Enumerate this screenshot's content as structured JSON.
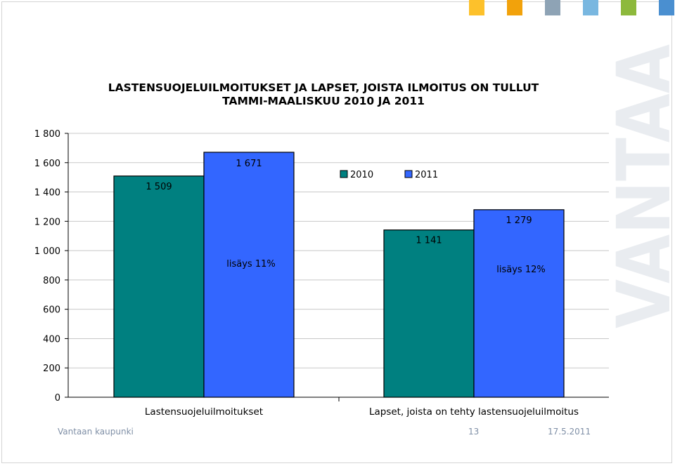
{
  "brand": {
    "watermark": "VANTAA",
    "swatch_colors": [
      "#FDC12B",
      "#F2A20B",
      "#8EA3B5",
      "#79B7E0",
      "#8DB93C",
      "#4A8FD0"
    ]
  },
  "chart_data": {
    "type": "bar",
    "title_lines": [
      "LASTENSUOJELUILMOITUKSET JA LAPSET, JOISTA ILMOITUS ON TULLUT",
      "TAMMI-MAALISKUU 2010 JA 2011"
    ],
    "categories": [
      "Lastensuojeluilmoitukset",
      "Lapset, joista on tehty lastensuojeluilmoitus"
    ],
    "series": [
      {
        "name": "2010",
        "color": "#008080",
        "values": [
          1509,
          1141
        ],
        "value_labels": [
          "1 509",
          "1 141"
        ]
      },
      {
        "name": "2011",
        "color": "#3366FF",
        "values": [
          1671,
          1279
        ],
        "value_labels": [
          "1 671",
          "1 279"
        ]
      }
    ],
    "annotations": [
      "lisäys 11%",
      "lisäys 12%"
    ],
    "ylim": [
      0,
      1800
    ],
    "yticks": [
      0,
      200,
      400,
      600,
      800,
      1000,
      1200,
      1400,
      1600,
      1800
    ],
    "ytick_labels": [
      "0",
      "200",
      "400",
      "600",
      "800",
      "1 000",
      "1 200",
      "1 400",
      "1 600",
      "1 800"
    ],
    "grid": true,
    "legend": "top-right"
  },
  "footer": {
    "organization": "Vantaan kaupunki",
    "page_number": "13",
    "date": "17.5.2011"
  }
}
